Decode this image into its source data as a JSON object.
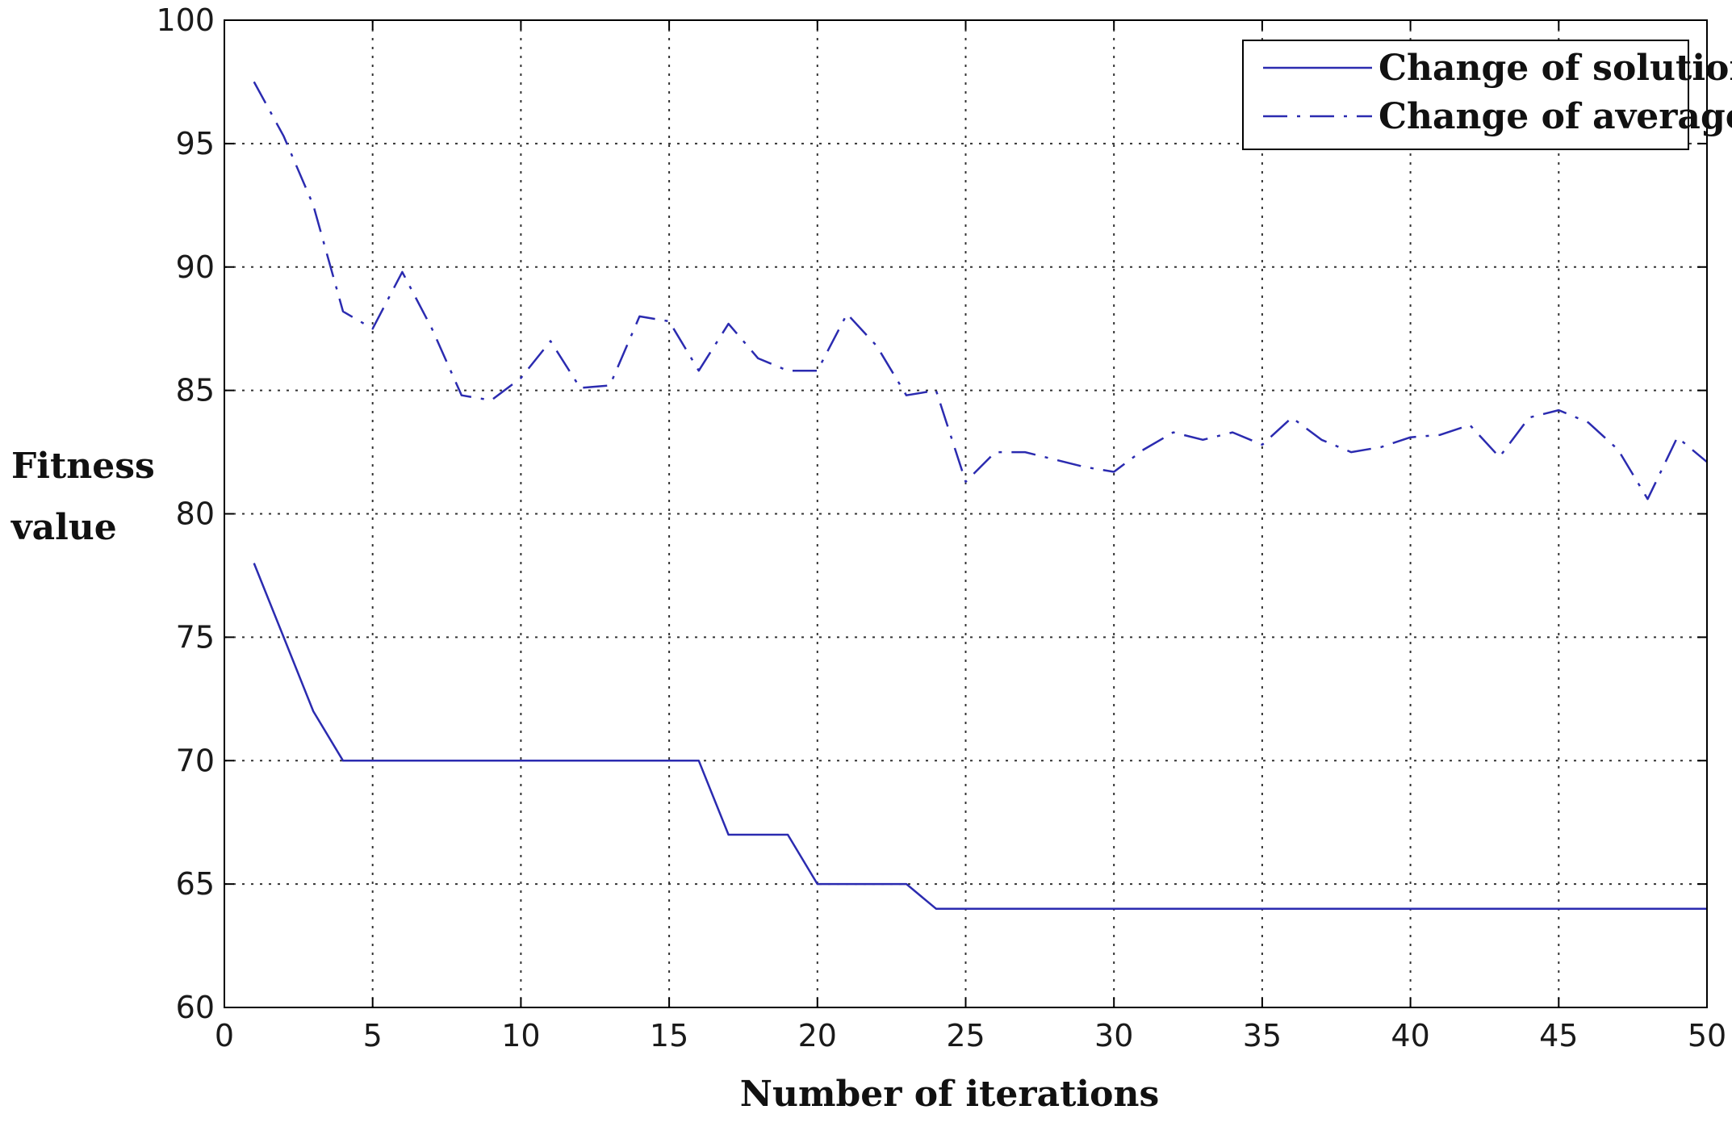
{
  "chart_data": {
    "type": "line",
    "title": "",
    "xlabel": "Number of iterations",
    "ylabel": "Fitness value",
    "ylabel_lines": [
      "Fitness",
      "value"
    ],
    "xlim": [
      0,
      50
    ],
    "ylim": [
      60,
      100
    ],
    "xticks": [
      0,
      5,
      10,
      15,
      20,
      25,
      30,
      35,
      40,
      45,
      50
    ],
    "yticks": [
      60,
      65,
      70,
      75,
      80,
      85,
      90,
      95,
      100
    ],
    "grid": true,
    "legend_position": "top-right",
    "series": [
      {
        "name": "Change of solution",
        "color": "#2b2bb0",
        "style": "solid",
        "x": [
          1,
          2,
          3,
          4,
          5,
          6,
          7,
          8,
          9,
          10,
          11,
          12,
          13,
          14,
          15,
          16,
          17,
          18,
          19,
          20,
          21,
          22,
          23,
          24,
          25,
          26,
          27,
          28,
          29,
          30,
          31,
          32,
          33,
          34,
          35,
          36,
          37,
          38,
          39,
          40,
          41,
          42,
          43,
          44,
          45,
          46,
          47,
          48,
          49,
          50
        ],
        "y": [
          78,
          75,
          72,
          70,
          70,
          70,
          70,
          70,
          70,
          70,
          70,
          70,
          70,
          70,
          70,
          70,
          67,
          67,
          67,
          65,
          65,
          65,
          65,
          64,
          64,
          64,
          64,
          64,
          64,
          64,
          64,
          64,
          64,
          64,
          64,
          64,
          64,
          64,
          64,
          64,
          64,
          64,
          64,
          64,
          64,
          64,
          64,
          64,
          64,
          64
        ]
      },
      {
        "name": "Change of average",
        "color": "#2b2bb0",
        "style": "dashdot",
        "x": [
          1,
          2,
          3,
          4,
          5,
          6,
          7,
          8,
          9,
          10,
          11,
          12,
          13,
          14,
          15,
          16,
          17,
          18,
          19,
          20,
          21,
          22,
          23,
          24,
          25,
          26,
          27,
          28,
          29,
          30,
          31,
          32,
          33,
          34,
          35,
          36,
          37,
          38,
          39,
          40,
          41,
          42,
          43,
          44,
          45,
          46,
          47,
          48,
          49,
          50
        ],
        "y": [
          97.5,
          95.3,
          92.5,
          88.2,
          87.5,
          89.8,
          87.5,
          84.8,
          84.6,
          85.5,
          87.0,
          85.1,
          85.2,
          88.0,
          87.8,
          85.8,
          87.7,
          86.3,
          85.8,
          85.8,
          88.1,
          86.8,
          84.8,
          85.0,
          81.3,
          82.5,
          82.5,
          82.2,
          81.9,
          81.7,
          82.6,
          83.3,
          83.0,
          83.3,
          82.8,
          83.9,
          83.0,
          82.5,
          82.7,
          83.1,
          83.2,
          83.6,
          82.3,
          83.9,
          84.2,
          83.7,
          82.6,
          80.6,
          83.1,
          82.1
        ]
      }
    ]
  }
}
